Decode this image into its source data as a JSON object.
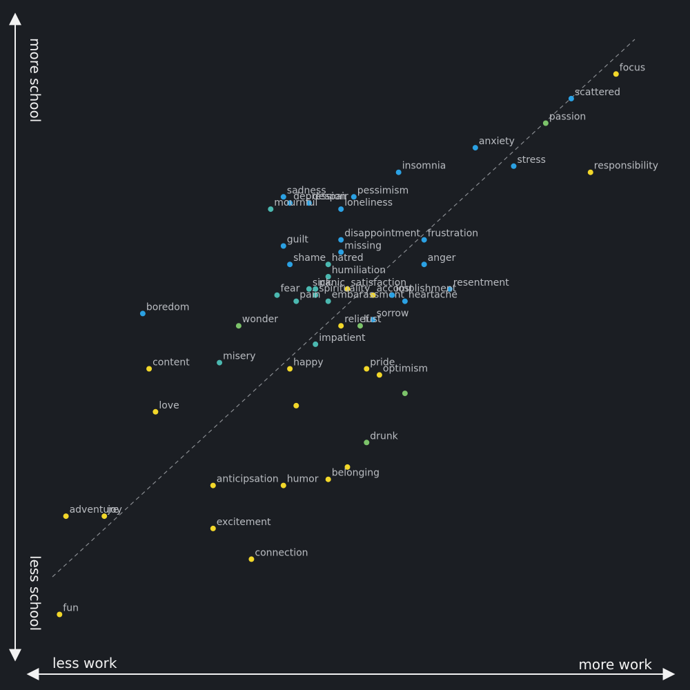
{
  "colors": {
    "background": "#1b1e23",
    "axis": "#f2f2f2",
    "label": "#b9bcc1",
    "diagonal": "#8a8d92",
    "blue": "#2ba1e3",
    "teal": "#4bb8b0",
    "green": "#7cc36a",
    "yellow": "#f2d72a"
  },
  "axes": {
    "x_low": "less work",
    "x_high": "more work",
    "y_low": "less school",
    "y_high": "more school"
  },
  "chart_data": {
    "type": "scatter",
    "xlim": [
      0,
      1
    ],
    "ylim": [
      0,
      1
    ],
    "xlabel": "",
    "ylabel": "",
    "reference_line": "diagonal y = x (dashed)",
    "grid": false,
    "points": [
      {
        "label": "focus",
        "x": 0.92,
        "y": 0.93,
        "color": "yellow"
      },
      {
        "label": "scattered",
        "x": 0.85,
        "y": 0.89,
        "color": "blue"
      },
      {
        "label": "passion",
        "x": 0.81,
        "y": 0.85,
        "color": "green"
      },
      {
        "label": "anxiety",
        "x": 0.7,
        "y": 0.81,
        "color": "blue"
      },
      {
        "label": "stress",
        "x": 0.76,
        "y": 0.78,
        "color": "blue"
      },
      {
        "label": "responsibility",
        "x": 0.88,
        "y": 0.77,
        "color": "yellow"
      },
      {
        "label": "insomnia",
        "x": 0.58,
        "y": 0.77,
        "color": "blue"
      },
      {
        "label": "sadness",
        "x": 0.4,
        "y": 0.73,
        "color": "blue"
      },
      {
        "label": "pessimism",
        "x": 0.51,
        "y": 0.73,
        "color": "blue"
      },
      {
        "label": "depression",
        "x": 0.41,
        "y": 0.72,
        "color": "blue"
      },
      {
        "label": "despair",
        "x": 0.44,
        "y": 0.72,
        "color": "blue"
      },
      {
        "label": "mournful",
        "x": 0.38,
        "y": 0.71,
        "color": "teal"
      },
      {
        "label": "loneliness",
        "x": 0.49,
        "y": 0.71,
        "color": "blue"
      },
      {
        "label": "disappointment",
        "x": 0.49,
        "y": 0.66,
        "color": "blue"
      },
      {
        "label": "frustration",
        "x": 0.62,
        "y": 0.66,
        "color": "blue"
      },
      {
        "label": "guilt",
        "x": 0.4,
        "y": 0.65,
        "color": "blue"
      },
      {
        "label": "missing",
        "x": 0.49,
        "y": 0.64,
        "color": "blue"
      },
      {
        "label": "hatred",
        "x": 0.47,
        "y": 0.62,
        "color": "teal"
      },
      {
        "label": "anger",
        "x": 0.62,
        "y": 0.62,
        "color": "blue"
      },
      {
        "label": "shame",
        "x": 0.41,
        "y": 0.62,
        "color": "blue"
      },
      {
        "label": "humiliation",
        "x": 0.47,
        "y": 0.6,
        "color": "teal"
      },
      {
        "label": "resentment",
        "x": 0.66,
        "y": 0.58,
        "color": "blue"
      },
      {
        "label": "satisfaction",
        "x": 0.5,
        "y": 0.58,
        "color": "yellow"
      },
      {
        "label": "panic",
        "x": 0.45,
        "y": 0.58,
        "color": "teal"
      },
      {
        "label": "sick",
        "x": 0.44,
        "y": 0.58,
        "color": "teal"
      },
      {
        "label": "accomplishment",
        "x": 0.54,
        "y": 0.57,
        "color": "yellow"
      },
      {
        "label": "fear",
        "x": 0.39,
        "y": 0.57,
        "color": "teal"
      },
      {
        "label": "spirituality",
        "x": 0.45,
        "y": 0.57,
        "color": "teal"
      },
      {
        "label": "embarassment",
        "x": 0.47,
        "y": 0.56,
        "color": "teal"
      },
      {
        "label": "heartache",
        "x": 0.59,
        "y": 0.56,
        "color": "blue"
      },
      {
        "label": "lost",
        "x": 0.57,
        "y": 0.57,
        "color": "blue"
      },
      {
        "label": "pain",
        "x": 0.42,
        "y": 0.56,
        "color": "teal"
      },
      {
        "label": "boredom",
        "x": 0.18,
        "y": 0.54,
        "color": "blue"
      },
      {
        "label": "sorrow",
        "x": 0.54,
        "y": 0.53,
        "color": "blue"
      },
      {
        "label": "relief",
        "x": 0.49,
        "y": 0.52,
        "color": "yellow"
      },
      {
        "label": "lust",
        "x": 0.52,
        "y": 0.52,
        "color": "green"
      },
      {
        "label": "wonder",
        "x": 0.33,
        "y": 0.52,
        "color": "green"
      },
      {
        "label": "impatient",
        "x": 0.45,
        "y": 0.49,
        "color": "teal"
      },
      {
        "label": "misery",
        "x": 0.3,
        "y": 0.46,
        "color": "teal"
      },
      {
        "label": "content",
        "x": 0.19,
        "y": 0.45,
        "color": "yellow"
      },
      {
        "label": "happy",
        "x": 0.41,
        "y": 0.45,
        "color": "yellow"
      },
      {
        "label": "pride",
        "x": 0.53,
        "y": 0.45,
        "color": "yellow"
      },
      {
        "label": "optimism",
        "x": 0.55,
        "y": 0.44,
        "color": "yellow"
      },
      {
        "label": "",
        "x": 0.59,
        "y": 0.41,
        "color": "green"
      },
      {
        "label": "love",
        "x": 0.2,
        "y": 0.38,
        "color": "yellow"
      },
      {
        "label": "",
        "x": 0.42,
        "y": 0.39,
        "color": "yellow"
      },
      {
        "label": "drunk",
        "x": 0.53,
        "y": 0.33,
        "color": "green"
      },
      {
        "label": "",
        "x": 0.5,
        "y": 0.29,
        "color": "yellow"
      },
      {
        "label": "belonging",
        "x": 0.47,
        "y": 0.27,
        "color": "yellow"
      },
      {
        "label": "anticipsation",
        "x": 0.29,
        "y": 0.26,
        "color": "yellow"
      },
      {
        "label": "humor",
        "x": 0.4,
        "y": 0.26,
        "color": "yellow"
      },
      {
        "label": "adventure",
        "x": 0.06,
        "y": 0.21,
        "color": "yellow"
      },
      {
        "label": "joy",
        "x": 0.12,
        "y": 0.21,
        "color": "yellow"
      },
      {
        "label": "excitement",
        "x": 0.29,
        "y": 0.19,
        "color": "yellow"
      },
      {
        "label": "connection",
        "x": 0.35,
        "y": 0.14,
        "color": "yellow"
      },
      {
        "label": "fun",
        "x": 0.05,
        "y": 0.05,
        "color": "yellow"
      }
    ]
  }
}
